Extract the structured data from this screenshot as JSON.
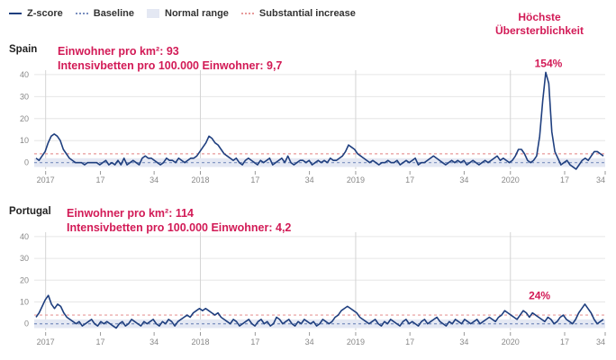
{
  "legend": {
    "zscore": "Z-score",
    "baseline": "Baseline",
    "normal": "Normal range",
    "substantial": "Substantial increase"
  },
  "highlight_title": "Höchste\nÜbersterblichkeit",
  "colors": {
    "line": "#1f3f7f",
    "baseline": "#7a8fbf",
    "band": "#e4e8f3",
    "substantial": "#e79a9a",
    "accent": "#d21a56"
  },
  "chart_data": [
    {
      "type": "line",
      "country": "Spain",
      "annotation_density": "Einwohner pro km²: 93",
      "annotation_icu": "Intensivbetten pro 100.000 Einwohner: 9,7",
      "peak_label": "154%",
      "ylim": [
        -3,
        42
      ],
      "yticks": [
        0,
        10,
        20,
        30,
        40
      ],
      "xticks": [
        "2017",
        "17",
        "34",
        "2018",
        "17",
        "34",
        "2019",
        "17",
        "34",
        "2020",
        "17",
        "34"
      ],
      "baseline": 0,
      "normal_range": [
        -2,
        2
      ],
      "substantial_increase": 4,
      "series": [
        {
          "values": [
            2,
            1,
            3,
            5,
            9,
            12,
            13,
            12,
            10,
            6,
            4,
            2,
            1,
            0,
            0,
            0,
            -1,
            0,
            0,
            0,
            0,
            -1,
            0,
            1,
            -1,
            0,
            -1,
            1,
            -1,
            2,
            -1,
            0,
            1,
            0,
            -1,
            2,
            3,
            2,
            2,
            1,
            0,
            -1,
            0,
            2,
            1,
            1,
            0,
            2,
            1,
            0,
            1,
            2,
            2,
            3,
            5,
            7,
            9,
            12,
            11,
            9,
            8,
            6,
            4,
            3,
            2,
            1,
            2,
            0,
            -1,
            1,
            2,
            1,
            0,
            -1,
            1,
            0,
            1,
            2,
            -1,
            0,
            1,
            2,
            0,
            3,
            0,
            -1,
            0,
            1,
            1,
            0,
            1,
            -1,
            0,
            1,
            0,
            1,
            0,
            2,
            1,
            1,
            2,
            3,
            5,
            8,
            7,
            6,
            4,
            3,
            2,
            1,
            0,
            1,
            0,
            -1,
            0,
            0,
            1,
            0,
            0,
            1,
            -1,
            0,
            1,
            0,
            1,
            2,
            -1,
            0,
            0,
            1,
            2,
            3,
            2,
            1,
            0,
            -1,
            0,
            1,
            0,
            1,
            0,
            1,
            -1,
            0,
            1,
            0,
            -1,
            0,
            1,
            0,
            1,
            2,
            3,
            1,
            2,
            1,
            0,
            1,
            3,
            6,
            6,
            4,
            1,
            0,
            1,
            3,
            12,
            28,
            41,
            36,
            14,
            5,
            2,
            -1,
            0,
            1,
            -1,
            -2,
            -3,
            -1,
            1,
            2,
            1,
            3,
            5,
            5,
            4,
            3
          ]
        }
      ]
    },
    {
      "type": "line",
      "country": "Portugal",
      "annotation_density": "Einwohner pro km²: 114",
      "annotation_icu": "Intensivbetten pro 100.000 Einwohner: 4,2",
      "peak_label": "24%",
      "ylim": [
        -3,
        42
      ],
      "yticks": [
        0,
        10,
        20,
        30,
        40
      ],
      "xticks": [
        "2017",
        "17",
        "34",
        "2018",
        "17",
        "34",
        "2019",
        "17",
        "34",
        "2020",
        "17",
        "34"
      ],
      "baseline": 0,
      "normal_range": [
        -2,
        2
      ],
      "substantial_increase": 4,
      "series": [
        {
          "values": [
            3,
            5,
            8,
            11,
            13,
            9,
            7,
            9,
            8,
            5,
            3,
            2,
            1,
            0,
            1,
            -1,
            0,
            1,
            2,
            0,
            -1,
            1,
            0,
            1,
            0,
            -1,
            -2,
            0,
            1,
            -1,
            0,
            2,
            1,
            0,
            -1,
            1,
            0,
            1,
            2,
            0,
            -1,
            1,
            0,
            2,
            1,
            -1,
            1,
            2,
            3,
            4,
            3,
            5,
            6,
            7,
            6,
            7,
            6,
            5,
            4,
            5,
            3,
            2,
            1,
            0,
            2,
            1,
            -1,
            0,
            1,
            2,
            0,
            -1,
            1,
            2,
            0,
            1,
            -1,
            0,
            3,
            2,
            0,
            1,
            2,
            0,
            -1,
            1,
            0,
            2,
            1,
            0,
            1,
            -1,
            0,
            2,
            1,
            0,
            1,
            3,
            4,
            6,
            7,
            8,
            7,
            6,
            5,
            3,
            2,
            1,
            0,
            1,
            2,
            0,
            -1,
            1,
            0,
            2,
            1,
            0,
            -1,
            1,
            2,
            0,
            1,
            0,
            -1,
            1,
            2,
            0,
            1,
            2,
            3,
            1,
            0,
            -1,
            1,
            0,
            2,
            1,
            0,
            2,
            1,
            0,
            1,
            2,
            0,
            1,
            2,
            3,
            2,
            1,
            3,
            4,
            6,
            5,
            4,
            3,
            2,
            4,
            6,
            5,
            3,
            5,
            4,
            3,
            2,
            1,
            3,
            2,
            0,
            1,
            3,
            4,
            2,
            1,
            0,
            2,
            5,
            7,
            9,
            7,
            5,
            2,
            0,
            1,
            2
          ]
        }
      ]
    }
  ]
}
